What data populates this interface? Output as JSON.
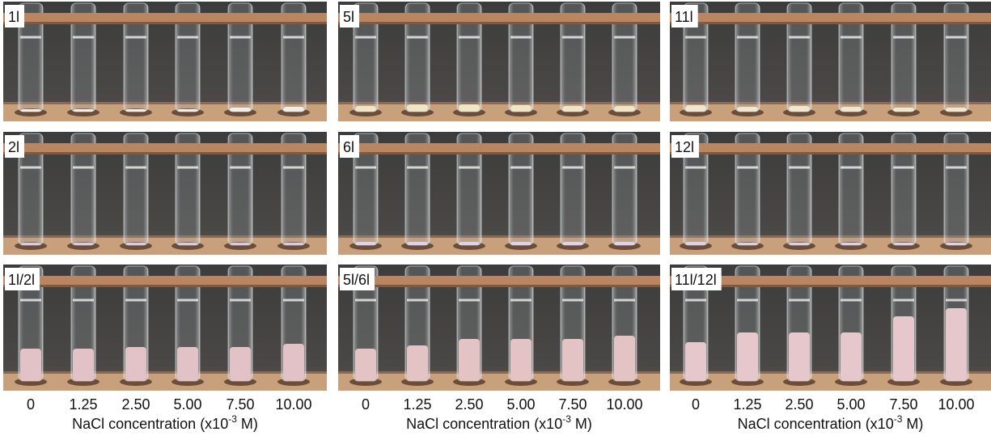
{
  "columns": [
    {
      "panels": [
        {
          "label": "1l"
        },
        {
          "label": "2l"
        },
        {
          "label": "1l/2l"
        }
      ],
      "x_axis": {
        "ticks": [
          "0",
          "1.25",
          "2.50",
          "5.00",
          "7.50",
          "10.00"
        ],
        "title": {
          "text": "NaCl concentration (x10",
          "superscript": "-3",
          "suffix": " M)"
        }
      }
    },
    {
      "panels": [
        {
          "label": "5l"
        },
        {
          "label": "6l"
        },
        {
          "label": "5l/6l"
        }
      ],
      "x_axis": {
        "ticks": [
          "0",
          "1.25",
          "2.50",
          "5.00",
          "7.50",
          "10.00"
        ],
        "title": {
          "text": "NaCl concentration (x10",
          "superscript": "-3",
          "suffix": " M)"
        }
      }
    },
    {
      "panels": [
        {
          "label": "11l"
        },
        {
          "label": "12l"
        },
        {
          "label": "11l/12l"
        }
      ],
      "x_axis": {
        "ticks": [
          "0",
          "1.25",
          "2.50",
          "5.00",
          "7.50",
          "10.00"
        ],
        "title": {
          "text": "NaCl concentration (x10",
          "superscript": "-3",
          "suffix": " M)"
        }
      }
    }
  ]
}
